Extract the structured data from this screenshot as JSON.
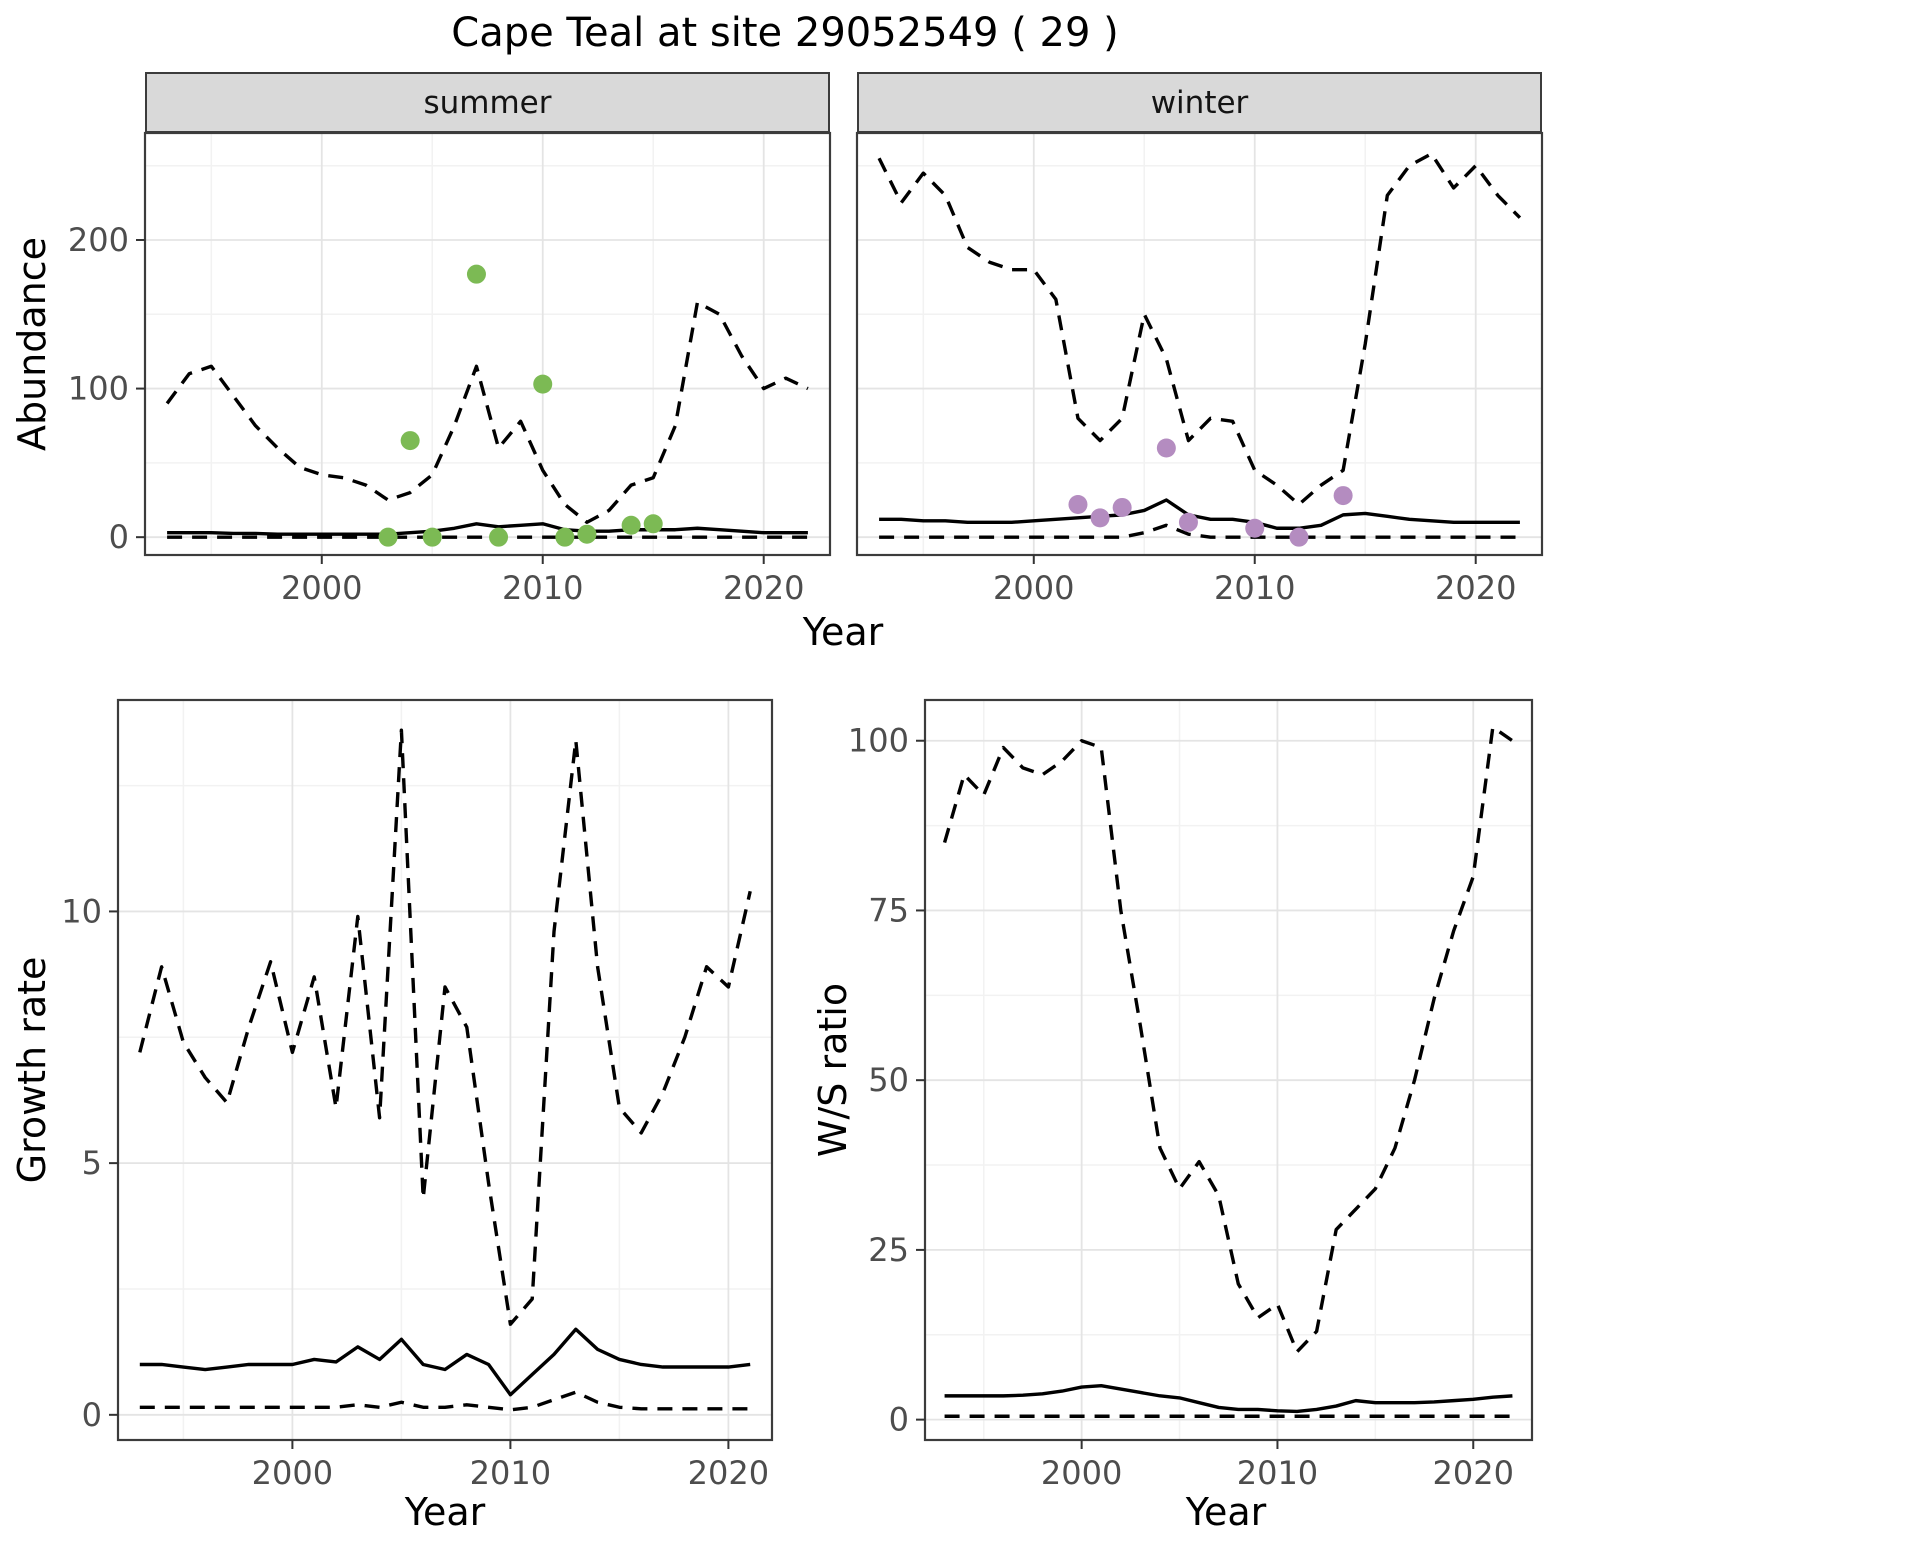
{
  "title": "Cape Teal at site 29052549 ( 29 )",
  "facets": {
    "summer": "summer",
    "winter": "winter"
  },
  "axis_labels": {
    "abundance": "Abundance",
    "year": "Year",
    "growth_rate": "Growth rate",
    "ws_ratio": "W/S ratio"
  },
  "theme": {
    "panel_bg": "#ffffff",
    "grid_major": "#e4e4e4",
    "grid_minor": "#f2f2f2",
    "panel_border": "#3c3c3c",
    "strip_bg": "#d9d9d9",
    "line": "#000000",
    "tick_mark": "#333333",
    "tick_text": "#4d4d4d",
    "summer_point": "#7cba54",
    "winter_point": "#b48cc0"
  },
  "chart_data": [
    {
      "id": "abundance-summer",
      "type": "line",
      "facet": "summer",
      "xlabel": "Year",
      "ylabel": "Abundance",
      "xlim": [
        1992,
        2023
      ],
      "ylim": [
        -12,
        272
      ],
      "xticks": [
        2000,
        2010,
        2020
      ],
      "yticks": [
        0,
        100,
        200
      ],
      "x": [
        1993,
        1994,
        1995,
        1996,
        1997,
        1998,
        1999,
        2000,
        2001,
        2002,
        2003,
        2004,
        2005,
        2006,
        2007,
        2008,
        2009,
        2010,
        2011,
        2012,
        2013,
        2014,
        2015,
        2016,
        2017,
        2018,
        2019,
        2020,
        2021,
        2022
      ],
      "series": [
        {
          "name": "upper-ci",
          "style": "dashed",
          "values": [
            90,
            110,
            115,
            95,
            75,
            60,
            47,
            42,
            40,
            35,
            25,
            30,
            42,
            75,
            115,
            60,
            78,
            45,
            22,
            10,
            18,
            35,
            40,
            75,
            158,
            150,
            122,
            100,
            107,
            100
          ]
        },
        {
          "name": "median",
          "style": "solid",
          "values": [
            3,
            3,
            3,
            2.5,
            2.5,
            2,
            2,
            2,
            2,
            2,
            2,
            3,
            4,
            6,
            9,
            7,
            8,
            9,
            5,
            4,
            4,
            5,
            5,
            5,
            6,
            5,
            4,
            3,
            3,
            3
          ]
        },
        {
          "name": "lower-ci",
          "style": "dashed",
          "values": [
            0,
            0,
            0,
            0,
            0,
            0,
            0,
            0,
            0,
            0,
            0,
            0,
            0,
            0,
            0,
            0,
            0,
            0,
            0,
            0,
            0,
            0,
            0,
            0,
            0,
            0,
            0,
            0,
            0,
            0
          ]
        }
      ],
      "points": {
        "name": "summer-observations",
        "color": "#7cba54",
        "x": [
          2003,
          2004,
          2005,
          2007,
          2008,
          2010,
          2011,
          2012,
          2014,
          2015
        ],
        "y": [
          0,
          65,
          0,
          177,
          0,
          103,
          0,
          2,
          8,
          9
        ]
      }
    },
    {
      "id": "abundance-winter",
      "type": "line",
      "facet": "winter",
      "xlabel": "Year",
      "ylabel": "Abundance",
      "xlim": [
        1992,
        2023
      ],
      "ylim": [
        -12,
        272
      ],
      "xticks": [
        2000,
        2010,
        2020
      ],
      "yticks": [
        0,
        100,
        200
      ],
      "x": [
        1993,
        1994,
        1995,
        1996,
        1997,
        1998,
        1999,
        2000,
        2001,
        2002,
        2003,
        2004,
        2005,
        2006,
        2007,
        2008,
        2009,
        2010,
        2011,
        2012,
        2013,
        2014,
        2015,
        2016,
        2017,
        2018,
        2019,
        2020,
        2021,
        2022
      ],
      "series": [
        {
          "name": "upper-ci",
          "style": "dashed",
          "values": [
            255,
            225,
            245,
            230,
            195,
            185,
            180,
            180,
            160,
            80,
            65,
            80,
            150,
            120,
            65,
            80,
            78,
            45,
            35,
            22,
            35,
            45,
            130,
            230,
            250,
            258,
            235,
            250,
            230,
            215
          ]
        },
        {
          "name": "median",
          "style": "solid",
          "values": [
            12,
            12,
            11,
            11,
            10,
            10,
            10,
            11,
            12,
            13,
            14,
            15,
            18,
            25,
            15,
            12,
            12,
            10,
            6,
            6,
            8,
            15,
            16,
            14,
            12,
            11,
            10,
            10,
            10,
            10
          ]
        },
        {
          "name": "lower-ci",
          "style": "dashed",
          "values": [
            0,
            0,
            0,
            0,
            0,
            0,
            0,
            0,
            0,
            0,
            0,
            0,
            3,
            8,
            2,
            0,
            0,
            0,
            0,
            0,
            0,
            0,
            0,
            0,
            0,
            0,
            0,
            0,
            0,
            0
          ]
        }
      ],
      "points": {
        "name": "winter-observations",
        "color": "#b48cc0",
        "x": [
          2002,
          2003,
          2004,
          2006,
          2007,
          2010,
          2012,
          2014
        ],
        "y": [
          22,
          13,
          20,
          60,
          10,
          6,
          0,
          28
        ]
      }
    },
    {
      "id": "growth-rate",
      "type": "line",
      "xlabel": "Year",
      "ylabel": "Growth rate",
      "xlim": [
        1992,
        2022
      ],
      "ylim": [
        -0.5,
        14.2
      ],
      "xticks": [
        2000,
        2010,
        2020
      ],
      "yticks": [
        0,
        5,
        10
      ],
      "x": [
        1993,
        1994,
        1995,
        1996,
        1997,
        1998,
        1999,
        2000,
        2001,
        2002,
        2003,
        2004,
        2005,
        2006,
        2007,
        2008,
        2009,
        2010,
        2011,
        2012,
        2013,
        2014,
        2015,
        2016,
        2017,
        2018,
        2019,
        2020,
        2021
      ],
      "series": [
        {
          "name": "upper-ci",
          "style": "dashed",
          "values": [
            7.2,
            8.9,
            7.4,
            6.7,
            6.2,
            7.7,
            9,
            7.2,
            8.7,
            6.1,
            9.9,
            5.9,
            13.6,
            4.3,
            8.5,
            7.7,
            4.6,
            1.8,
            2.3,
            9.6,
            13.4,
            8.9,
            6.1,
            5.6,
            6.4,
            7.5,
            8.9,
            8.5,
            10.4
          ]
        },
        {
          "name": "median",
          "style": "solid",
          "values": [
            1,
            1,
            0.95,
            0.9,
            0.95,
            1,
            1,
            1,
            1.1,
            1.05,
            1.35,
            1.1,
            1.5,
            1,
            0.9,
            1.2,
            1,
            0.4,
            0.8,
            1.2,
            1.7,
            1.3,
            1.1,
            1,
            0.95,
            0.95,
            0.95,
            0.95,
            1
          ]
        },
        {
          "name": "lower-ci",
          "style": "dashed",
          "values": [
            0.15,
            0.15,
            0.15,
            0.15,
            0.15,
            0.15,
            0.15,
            0.15,
            0.15,
            0.15,
            0.2,
            0.15,
            0.25,
            0.15,
            0.15,
            0.2,
            0.15,
            0.1,
            0.15,
            0.3,
            0.45,
            0.25,
            0.15,
            0.12,
            0.12,
            0.12,
            0.12,
            0.12,
            0.12
          ]
        }
      ]
    },
    {
      "id": "ws-ratio",
      "type": "line",
      "xlabel": "Year",
      "ylabel": "W/S ratio",
      "xlim": [
        1992,
        2023
      ],
      "ylim": [
        -3,
        106
      ],
      "xticks": [
        2000,
        2010,
        2020
      ],
      "yticks": [
        0,
        25,
        50,
        75,
        100
      ],
      "x": [
        1993,
        1994,
        1995,
        1996,
        1997,
        1998,
        1999,
        2000,
        2001,
        2002,
        2003,
        2004,
        2005,
        2006,
        2007,
        2008,
        2009,
        2010,
        2011,
        2012,
        2013,
        2014,
        2015,
        2016,
        2017,
        2018,
        2019,
        2020,
        2021,
        2022
      ],
      "series": [
        {
          "name": "upper-ci",
          "style": "dashed",
          "values": [
            85,
            95,
            92,
            99,
            96,
            95,
            97,
            100,
            99,
            75,
            58,
            40,
            34,
            38,
            33,
            20,
            15,
            17,
            10,
            13,
            28,
            31,
            34,
            40,
            50,
            62,
            72,
            80,
            102,
            100
          ]
        },
        {
          "name": "median",
          "style": "solid",
          "values": [
            3.5,
            3.5,
            3.5,
            3.5,
            3.6,
            3.8,
            4.2,
            4.8,
            5,
            4.5,
            4,
            3.5,
            3.2,
            2.5,
            1.8,
            1.5,
            1.5,
            1.3,
            1.2,
            1.5,
            2,
            2.8,
            2.5,
            2.5,
            2.5,
            2.6,
            2.8,
            3,
            3.3,
            3.5
          ]
        },
        {
          "name": "lower-ci",
          "style": "dashed",
          "values": [
            0.5,
            0.5,
            0.5,
            0.5,
            0.5,
            0.5,
            0.5,
            0.5,
            0.5,
            0.5,
            0.5,
            0.5,
            0.5,
            0.5,
            0.5,
            0.5,
            0.5,
            0.5,
            0.5,
            0.5,
            0.5,
            0.5,
            0.5,
            0.5,
            0.5,
            0.5,
            0.5,
            0.5,
            0.5,
            0.5
          ]
        }
      ]
    }
  ]
}
